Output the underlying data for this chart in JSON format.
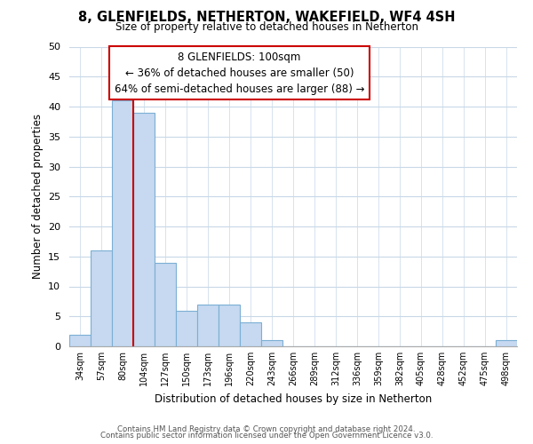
{
  "title": "8, GLENFIELDS, NETHERTON, WAKEFIELD, WF4 4SH",
  "subtitle": "Size of property relative to detached houses in Netherton",
  "xlabel": "Distribution of detached houses by size in Netherton",
  "ylabel": "Number of detached properties",
  "bin_labels": [
    "34sqm",
    "57sqm",
    "80sqm",
    "104sqm",
    "127sqm",
    "150sqm",
    "173sqm",
    "196sqm",
    "220sqm",
    "243sqm",
    "266sqm",
    "289sqm",
    "312sqm",
    "336sqm",
    "359sqm",
    "382sqm",
    "405sqm",
    "428sqm",
    "452sqm",
    "475sqm",
    "498sqm"
  ],
  "bar_heights": [
    2,
    16,
    41,
    39,
    14,
    6,
    7,
    7,
    4,
    1,
    0,
    0,
    0,
    0,
    0,
    0,
    0,
    0,
    0,
    0,
    1
  ],
  "bar_color": "#c6d9f0",
  "bar_edge_color": "#7bafd4",
  "vline_x": 3,
  "vline_color": "#cc0000",
  "ylim": [
    0,
    50
  ],
  "yticks": [
    0,
    5,
    10,
    15,
    20,
    25,
    30,
    35,
    40,
    45,
    50
  ],
  "annotation_title": "8 GLENFIELDS: 100sqm",
  "annotation_line1": "← 36% of detached houses are smaller (50)",
  "annotation_line2": "64% of semi-detached houses are larger (88) →",
  "footer_line1": "Contains HM Land Registry data © Crown copyright and database right 2024.",
  "footer_line2": "Contains public sector information licensed under the Open Government Licence v3.0.",
  "background_color": "#ffffff",
  "grid_color": "#c8d8e8"
}
